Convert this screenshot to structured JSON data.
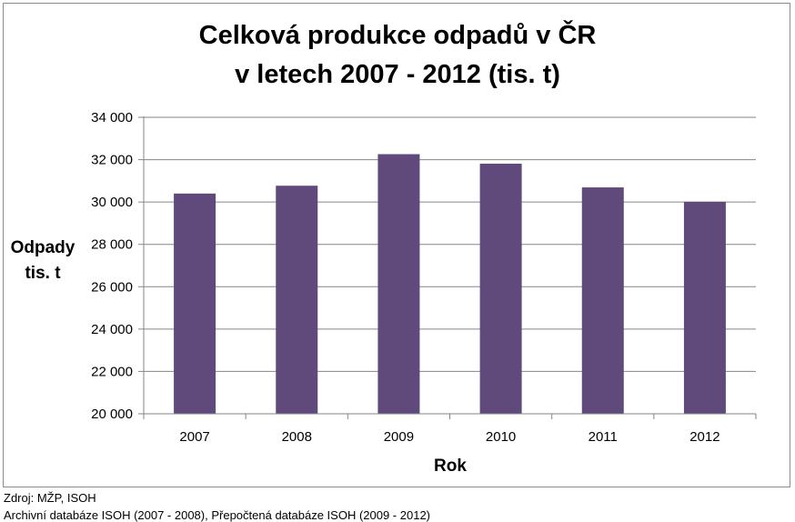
{
  "chart_data": {
    "type": "bar",
    "title_lines": [
      "Celková produkce odpadů v ČR",
      "v letech 2007 - 2012 (tis. t)"
    ],
    "categories": [
      "2007",
      "2008",
      "2009",
      "2010",
      "2011",
      "2012"
    ],
    "series": [
      {
        "values": [
          30400,
          30770,
          32260,
          31810,
          30690,
          30010
        ]
      }
    ],
    "xlabel": "Rok",
    "ylabel_lines": [
      "Odpady",
      "tis. t"
    ],
    "ylim": [
      20000,
      34000
    ],
    "yticks": [
      20000,
      22000,
      24000,
      26000,
      28000,
      30000,
      32000,
      34000
    ],
    "ytick_labels": [
      "20 000",
      "22 000",
      "24 000",
      "26 000",
      "28 000",
      "30 000",
      "32 000",
      "34 000"
    ],
    "grid": true,
    "bar_color": "#604a7b"
  },
  "source": {
    "line1": "Zdroj: MŽP, ISOH",
    "line2": "Archivní databáze ISOH (2007 - 2008), Přepočtená databáze ISOH (2009 - 2012)"
  }
}
